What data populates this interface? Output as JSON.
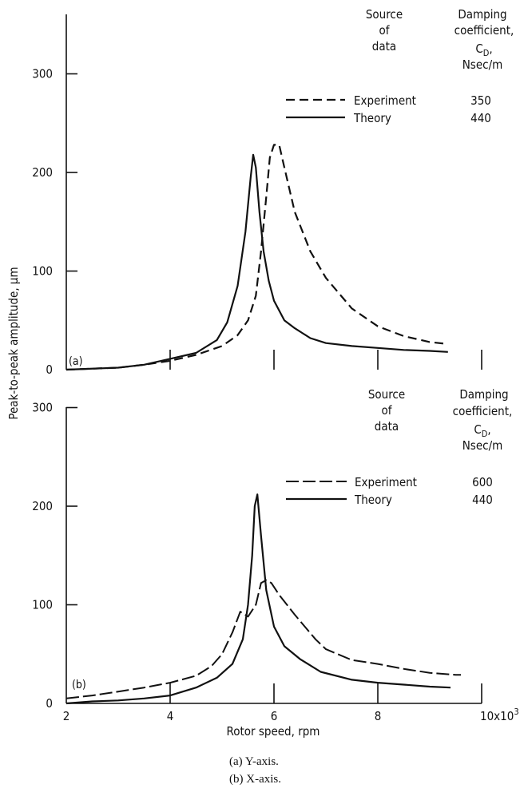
{
  "figure": {
    "y_axis_title": "Peak-to-peak amplitude,  μm",
    "x_axis_title": "Rotor speed,  rpm",
    "x_ticks": [
      "2",
      "4",
      "6",
      "8",
      "10x10³"
    ],
    "captions": [
      "(a)  Y-axis.",
      "(b)  X-axis."
    ]
  },
  "chart_data": [
    {
      "type": "line",
      "panel_label": "(a)",
      "y_ticks": [
        "0",
        "100",
        "200",
        "300"
      ],
      "ylim": [
        0,
        350
      ],
      "xlim": [
        2,
        10
      ],
      "legend": {
        "header_source": [
          "Source",
          "of",
          "data"
        ],
        "header_coef": [
          "Damping",
          "coefficient,",
          "C_D,",
          "Nsec/m"
        ],
        "entries": [
          {
            "name": "Experiment",
            "damping": "350",
            "style": "dashed"
          },
          {
            "name": "Theory",
            "damping": "440",
            "style": "solid"
          }
        ]
      },
      "series": [
        {
          "name": "Experiment",
          "x": [
            2.0,
            3.0,
            3.5,
            4.0,
            4.5,
            5.0,
            5.3,
            5.5,
            5.65,
            5.75,
            5.85,
            5.92,
            6.0,
            6.1,
            6.2,
            6.4,
            6.7,
            7.0,
            7.5,
            8.0,
            8.5,
            9.0,
            9.35
          ],
          "y": [
            0,
            2,
            5,
            9,
            15,
            24,
            35,
            50,
            75,
            120,
            175,
            215,
            228,
            228,
            205,
            160,
            120,
            93,
            62,
            44,
            34,
            28,
            26
          ]
        },
        {
          "name": "Theory",
          "x": [
            2.0,
            3.0,
            3.5,
            4.0,
            4.5,
            4.9,
            5.1,
            5.3,
            5.45,
            5.55,
            5.6,
            5.65,
            5.72,
            5.8,
            5.9,
            6.0,
            6.2,
            6.4,
            6.7,
            7.0,
            7.5,
            8.0,
            8.5,
            9.0,
            9.35
          ],
          "y": [
            0,
            2,
            5,
            11,
            17,
            30,
            48,
            85,
            140,
            195,
            218,
            205,
            160,
            120,
            90,
            70,
            50,
            42,
            32,
            27,
            24,
            22,
            20,
            19,
            18
          ]
        }
      ]
    },
    {
      "type": "line",
      "panel_label": "(b)",
      "y_ticks": [
        "0",
        "100",
        "200",
        "300"
      ],
      "ylim": [
        0,
        300
      ],
      "xlim": [
        2,
        10
      ],
      "legend": {
        "header_source": [
          "Source",
          "of",
          "data"
        ],
        "header_coef": [
          "Damping",
          "coefficient,",
          "C_D,",
          "Nsec/m"
        ],
        "entries": [
          {
            "name": "Experiment",
            "damping": "600",
            "style": "dashed"
          },
          {
            "name": "Theory",
            "damping": "440",
            "style": "solid"
          }
        ]
      },
      "series": [
        {
          "name": "Experiment",
          "x": [
            2.0,
            2.5,
            3.0,
            3.5,
            4.0,
            4.5,
            4.8,
            5.0,
            5.2,
            5.35,
            5.5,
            5.65,
            5.75,
            5.85,
            5.95,
            6.1,
            6.4,
            6.8,
            7.0,
            7.5,
            8.0,
            8.5,
            9.0,
            9.5,
            9.6
          ],
          "y": [
            5,
            8,
            12,
            16,
            21,
            28,
            38,
            50,
            72,
            93,
            88,
            100,
            122,
            125,
            122,
            110,
            90,
            65,
            55,
            44,
            40,
            35,
            31,
            29,
            29
          ]
        },
        {
          "name": "Theory",
          "x": [
            2.0,
            2.5,
            3.0,
            3.5,
            4.0,
            4.5,
            4.9,
            5.2,
            5.4,
            5.5,
            5.58,
            5.63,
            5.68,
            5.75,
            5.85,
            6.0,
            6.2,
            6.5,
            6.9,
            7.5,
            8.0,
            8.5,
            9.0,
            9.4
          ],
          "y": [
            0,
            2,
            3,
            5,
            8,
            16,
            26,
            40,
            65,
            100,
            150,
            200,
            212,
            170,
            115,
            78,
            58,
            45,
            32,
            24,
            21,
            19,
            17,
            16
          ]
        }
      ]
    }
  ]
}
